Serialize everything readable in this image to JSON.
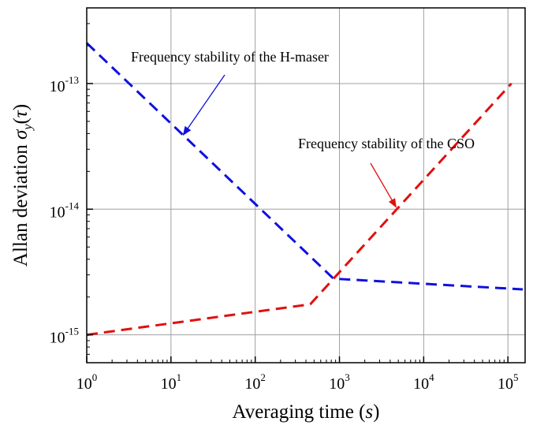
{
  "chart_data": {
    "type": "line",
    "xlabel": "Averaging time (s)",
    "ylabel": "Allan deviation σy(τ)",
    "xscale": "log",
    "yscale": "log",
    "xlim": [
      1,
      160000
    ],
    "ylim": [
      6e-16,
      4e-13
    ],
    "grid": true,
    "x_ticks": [
      {
        "base": "10",
        "exp": "0",
        "value": 1
      },
      {
        "base": "10",
        "exp": "1",
        "value": 10
      },
      {
        "base": "10",
        "exp": "2",
        "value": 100
      },
      {
        "base": "10",
        "exp": "3",
        "value": 1000
      },
      {
        "base": "10",
        "exp": "4",
        "value": 10000
      },
      {
        "base": "10",
        "exp": "5",
        "value": 100000
      }
    ],
    "y_ticks": [
      {
        "base": "10",
        "exp": "-15",
        "value": 1e-15
      },
      {
        "base": "10",
        "exp": "-14",
        "value": 1e-14
      },
      {
        "base": "10",
        "exp": "-13",
        "value": 1e-13
      }
    ],
    "series": [
      {
        "color": "#1010e0",
        "dash": "dashed",
        "x": [
          1,
          850,
          150000
        ],
        "y": [
          2.1e-13,
          2.8e-15,
          2.3e-15
        ]
      },
      {
        "color": "#e01010",
        "dash": "dashed",
        "x": [
          1,
          450,
          850,
          110000
        ],
        "y": [
          1e-15,
          1.75e-15,
          2.8e-15,
          1e-13
        ]
      }
    ],
    "annotations": [
      {
        "text": "Frequency stability of the H-maser",
        "color": "#1010e0",
        "arrow_tip": {
          "x": 14,
          "y": 3.9e-14
        }
      },
      {
        "text": "Frequency stability of the CSO",
        "color": "#e01010",
        "arrow_tip": {
          "x": 4700,
          "y": 1.04e-14
        }
      }
    ]
  }
}
